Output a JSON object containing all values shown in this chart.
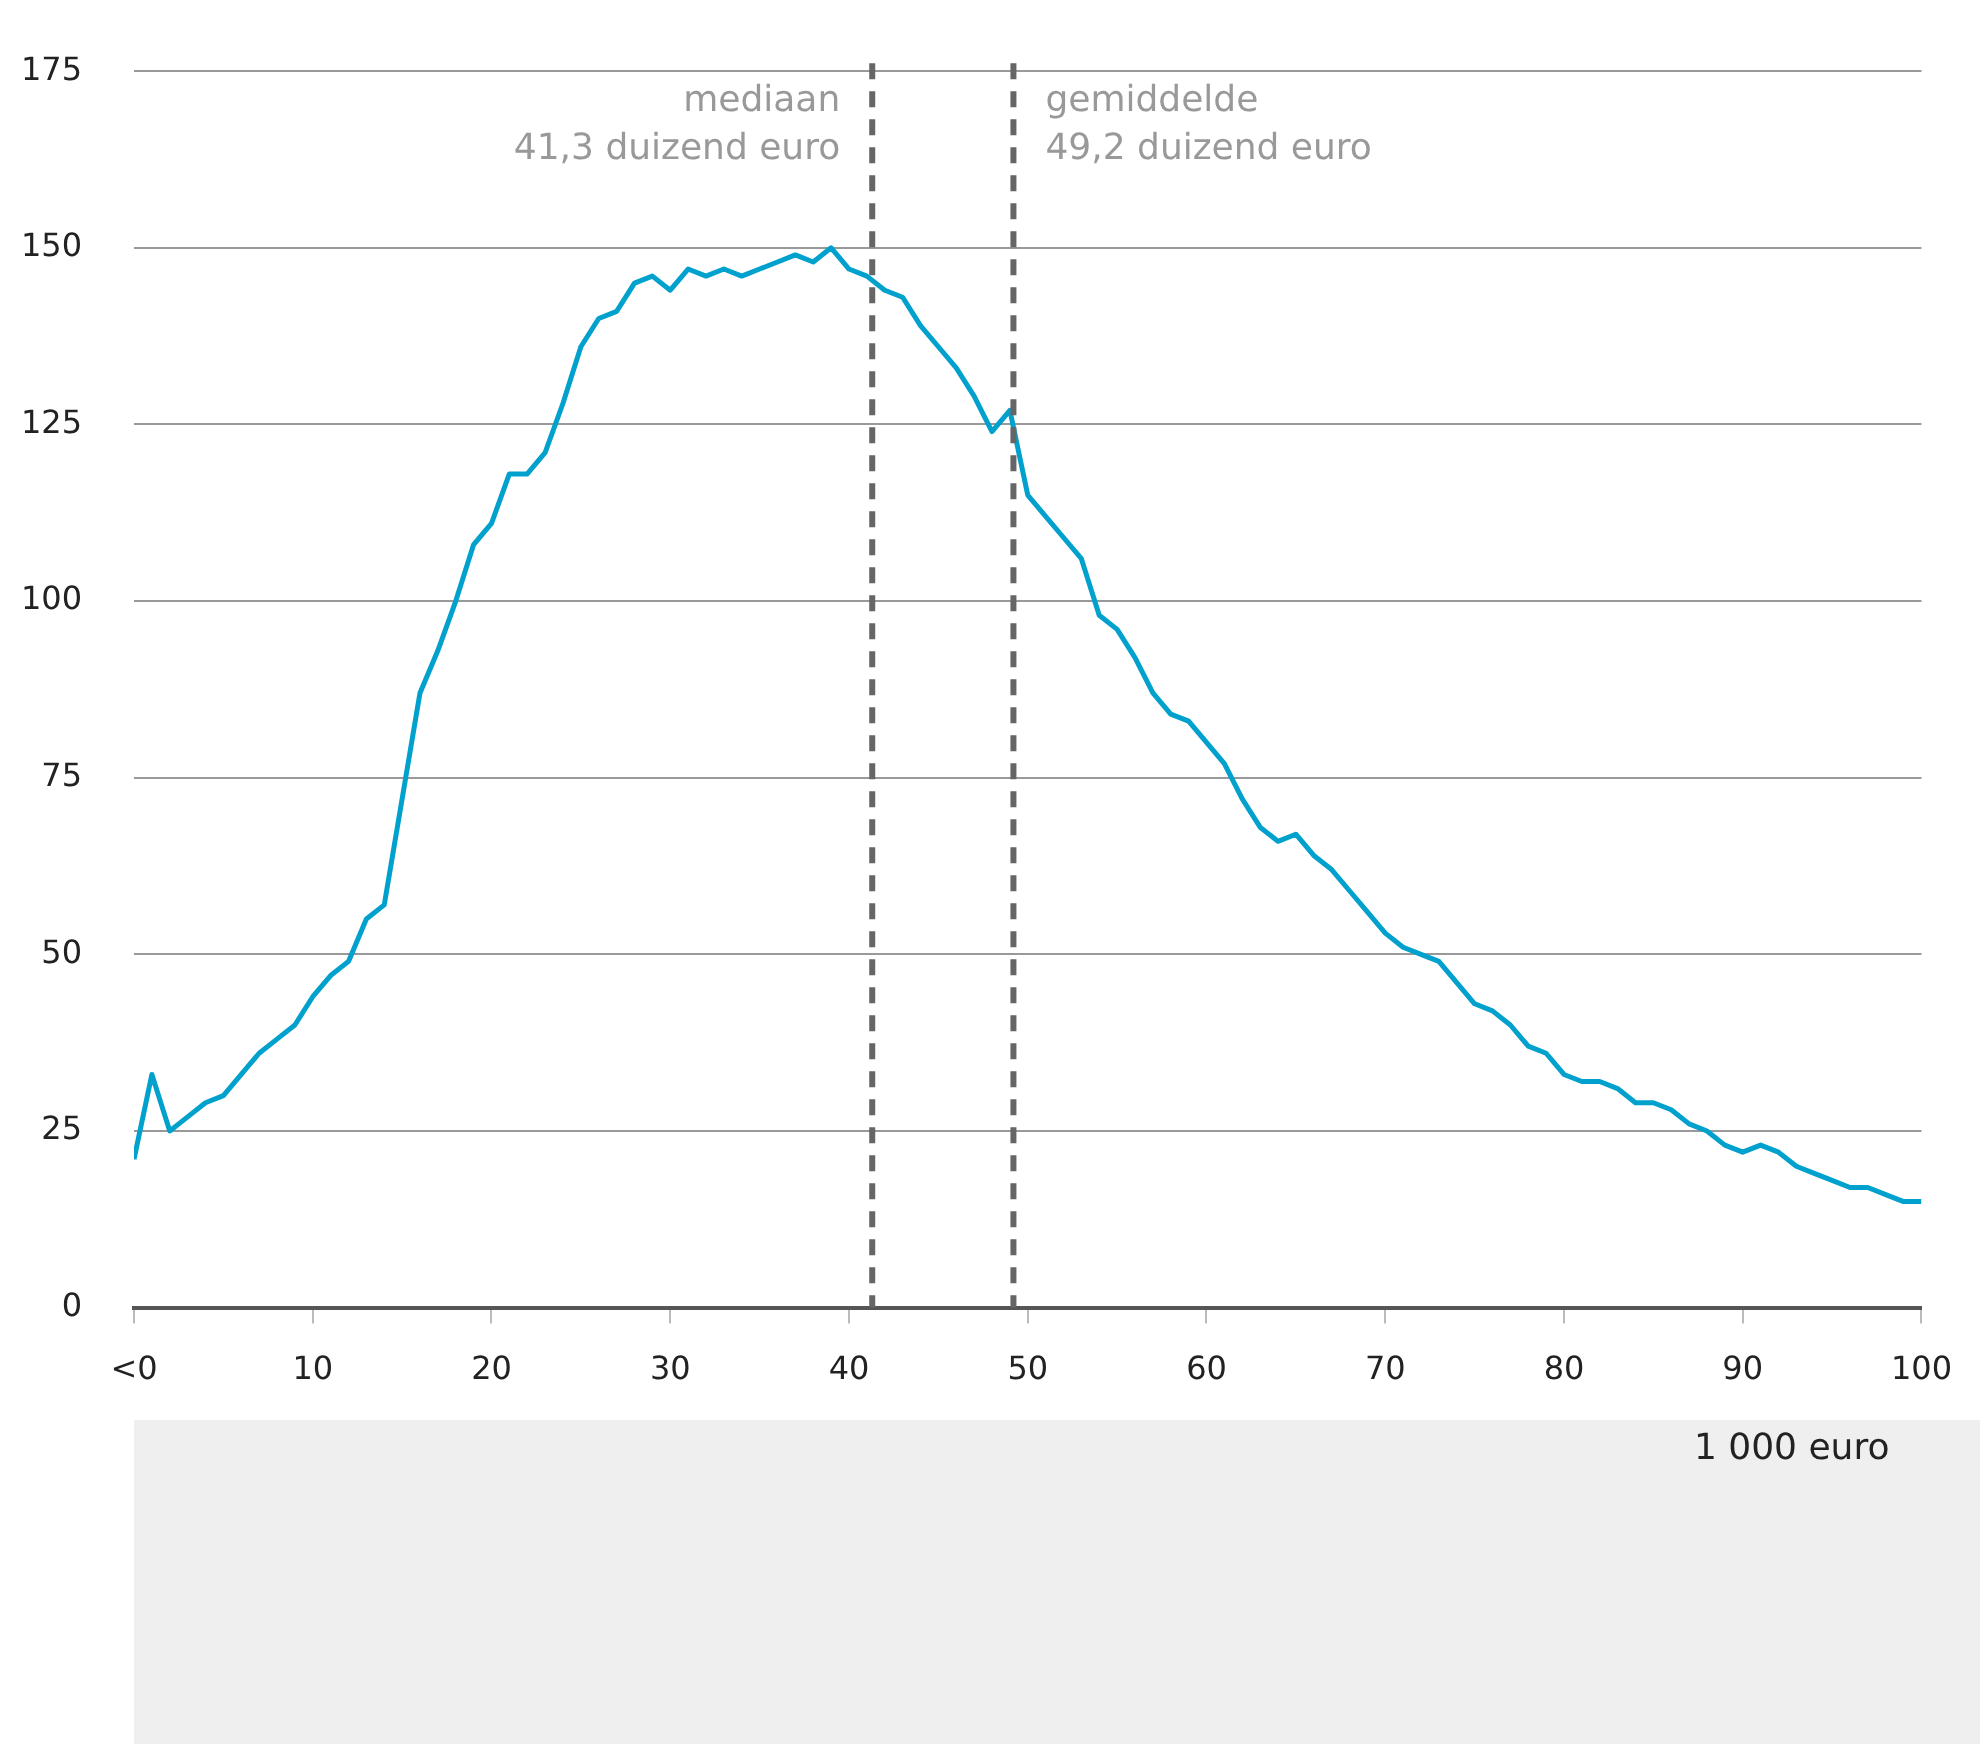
{
  "chart_data": {
    "type": "line",
    "xlabel": "1 000 euro",
    "x": [
      0,
      1,
      2,
      3,
      4,
      5,
      6,
      7,
      8,
      9,
      10,
      11,
      12,
      13,
      14,
      15,
      16,
      17,
      18,
      19,
      20,
      21,
      22,
      23,
      24,
      25,
      26,
      27,
      28,
      29,
      30,
      31,
      32,
      33,
      34,
      35,
      36,
      37,
      38,
      39,
      40,
      41,
      42,
      43,
      44,
      45,
      46,
      47,
      48,
      49,
      50,
      51,
      52,
      53,
      54,
      55,
      56,
      57,
      58,
      59,
      60,
      61,
      62,
      63,
      64,
      65,
      66,
      67,
      68,
      69,
      70,
      71,
      72,
      73,
      74,
      75,
      76,
      77,
      78,
      79,
      80,
      81,
      82,
      83,
      84,
      85,
      86,
      87,
      88,
      89,
      90,
      91,
      92,
      93,
      94,
      95,
      96,
      97,
      98,
      99,
      100
    ],
    "series": [
      {
        "color": "#00a1cd",
        "values": [
          21,
          33,
          25,
          27,
          29,
          30,
          33,
          36,
          38,
          40,
          44,
          47,
          49,
          55,
          57,
          72,
          87,
          93,
          100,
          108,
          111,
          118,
          118,
          121,
          128,
          136,
          140,
          141,
          145,
          146,
          144,
          147,
          146,
          147,
          146,
          147,
          148,
          149,
          148,
          150,
          147,
          146,
          144,
          143,
          139,
          136,
          133,
          129,
          124,
          127,
          115,
          112,
          109,
          106,
          98,
          96,
          92,
          87,
          84,
          83,
          80,
          77,
          72,
          68,
          66,
          67,
          64,
          62,
          59,
          56,
          53,
          51,
          50,
          49,
          46,
          43,
          42,
          40,
          37,
          36,
          33,
          32,
          32,
          31,
          29,
          29,
          28,
          26,
          25,
          23,
          22,
          23,
          22,
          20,
          19,
          18,
          17,
          17,
          16,
          15,
          15
        ]
      }
    ],
    "xlim": [
      0,
      100
    ],
    "xticks": [
      {
        "value": 0,
        "label": "<0"
      },
      10,
      20,
      30,
      40,
      50,
      60,
      70,
      80,
      90,
      100
    ],
    "ylim": [
      0,
      175
    ],
    "yticks": [
      0,
      25,
      50,
      75,
      100,
      125,
      150,
      175
    ],
    "grid": "y",
    "legend": false,
    "marker": "none",
    "line_style": "solid",
    "ref_lines": [
      {
        "axis": "x",
        "value": 41.3,
        "label": "mediaan\n41,3 duizend euro",
        "color": "#666666",
        "line_style": "dashed"
      },
      {
        "axis": "x",
        "value": 49.2,
        "label": "gemiddelde\n49,2 duizend euro",
        "color": "#666666",
        "line_style": "dashed"
      }
    ]
  }
}
